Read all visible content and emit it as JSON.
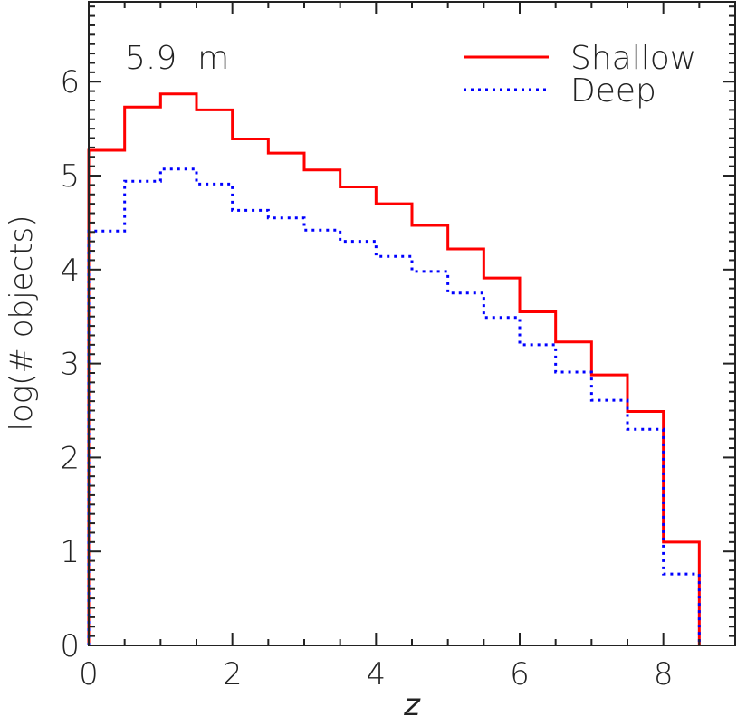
{
  "chart_data": {
    "type": "line",
    "step": true,
    "annotation": "5.9  m",
    "xlabel": "z",
    "ylabel": "log(# objects)",
    "xlim": [
      0,
      9
    ],
    "ylim": [
      0,
      6.85
    ],
    "xticks": [
      "0",
      "2",
      "4",
      "6",
      "8"
    ],
    "yticks": [
      "0",
      "1",
      "2",
      "3",
      "4",
      "5",
      "6"
    ],
    "grid": false,
    "legend_position": "top-right",
    "bin_edges": [
      0,
      0.5,
      1,
      1.5,
      2,
      2.5,
      3,
      3.5,
      4,
      4.5,
      5,
      5.5,
      6,
      6.5,
      7,
      7.5,
      8,
      8.5
    ],
    "series": [
      {
        "name": "Shallow",
        "color": "#ff0000",
        "style": "solid",
        "values": [
          5.27,
          5.73,
          5.87,
          5.7,
          5.39,
          5.24,
          5.06,
          4.88,
          4.7,
          4.47,
          4.22,
          3.91,
          3.55,
          3.23,
          2.88,
          2.49,
          1.1
        ]
      },
      {
        "name": "Deep",
        "color": "#0000ff",
        "style": "dotted",
        "values": [
          4.41,
          4.94,
          5.07,
          4.91,
          4.63,
          4.55,
          4.42,
          4.3,
          4.14,
          3.98,
          3.75,
          3.49,
          3.2,
          2.91,
          2.61,
          2.3,
          0.76
        ]
      }
    ]
  }
}
